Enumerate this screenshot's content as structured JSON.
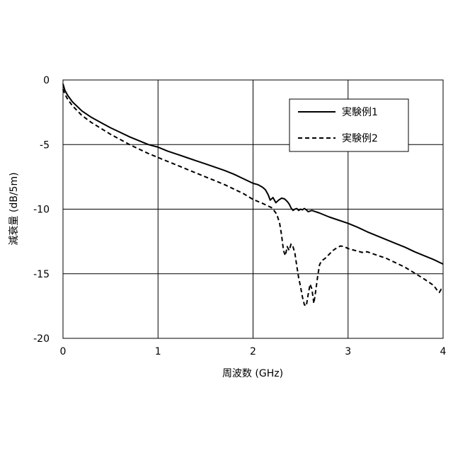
{
  "chart_data": {
    "type": "line",
    "xlabel": "周波数 (GHz)",
    "ylabel": "減衰量 (dB/5m)",
    "xlim": [
      0,
      4
    ],
    "ylim": [
      -20,
      0
    ],
    "x_ticks": [
      0,
      1,
      2,
      3,
      4
    ],
    "y_ticks": [
      0,
      -5,
      -10,
      -15,
      -20
    ],
    "x_tick_labels": [
      "0",
      "1",
      "2",
      "3",
      "4"
    ],
    "y_tick_labels": [
      "0",
      "-5",
      "-10",
      "-15",
      "-20"
    ],
    "grid": true,
    "legend_position": "top-right",
    "series": [
      {
        "name": "実験例1",
        "style": "solid",
        "color": "#000000",
        "points": [
          [
            0.0,
            -0.3
          ],
          [
            0.02,
            -0.8
          ],
          [
            0.05,
            -1.2
          ],
          [
            0.1,
            -1.7
          ],
          [
            0.2,
            -2.4
          ],
          [
            0.3,
            -2.9
          ],
          [
            0.4,
            -3.3
          ],
          [
            0.5,
            -3.7
          ],
          [
            0.6,
            -4.05
          ],
          [
            0.7,
            -4.4
          ],
          [
            0.8,
            -4.7
          ],
          [
            0.9,
            -5.0
          ],
          [
            1.0,
            -5.2
          ],
          [
            1.1,
            -5.5
          ],
          [
            1.2,
            -5.75
          ],
          [
            1.3,
            -6.0
          ],
          [
            1.4,
            -6.25
          ],
          [
            1.5,
            -6.5
          ],
          [
            1.6,
            -6.75
          ],
          [
            1.7,
            -7.0
          ],
          [
            1.8,
            -7.3
          ],
          [
            1.9,
            -7.65
          ],
          [
            2.0,
            -8.0
          ],
          [
            2.05,
            -8.1
          ],
          [
            2.1,
            -8.3
          ],
          [
            2.13,
            -8.5
          ],
          [
            2.16,
            -8.9
          ],
          [
            2.18,
            -9.3
          ],
          [
            2.21,
            -9.1
          ],
          [
            2.24,
            -9.5
          ],
          [
            2.27,
            -9.3
          ],
          [
            2.3,
            -9.15
          ],
          [
            2.33,
            -9.2
          ],
          [
            2.36,
            -9.4
          ],
          [
            2.38,
            -9.6
          ],
          [
            2.4,
            -9.9
          ],
          [
            2.42,
            -10.1
          ],
          [
            2.44,
            -10.0
          ],
          [
            2.46,
            -9.95
          ],
          [
            2.48,
            -10.1
          ],
          [
            2.5,
            -10.0
          ],
          [
            2.52,
            -10.05
          ],
          [
            2.54,
            -9.95
          ],
          [
            2.56,
            -10.05
          ],
          [
            2.58,
            -10.2
          ],
          [
            2.62,
            -10.1
          ],
          [
            2.7,
            -10.3
          ],
          [
            2.8,
            -10.6
          ],
          [
            2.9,
            -10.85
          ],
          [
            3.0,
            -11.1
          ],
          [
            3.1,
            -11.4
          ],
          [
            3.2,
            -11.75
          ],
          [
            3.3,
            -12.05
          ],
          [
            3.4,
            -12.35
          ],
          [
            3.5,
            -12.65
          ],
          [
            3.6,
            -12.95
          ],
          [
            3.7,
            -13.3
          ],
          [
            3.8,
            -13.6
          ],
          [
            3.9,
            -13.9
          ],
          [
            4.0,
            -14.25
          ]
        ]
      },
      {
        "name": "実験例2",
        "style": "dashed",
        "color": "#000000",
        "points": [
          [
            0.0,
            -0.7
          ],
          [
            0.02,
            -1.1
          ],
          [
            0.05,
            -1.5
          ],
          [
            0.1,
            -2.0
          ],
          [
            0.2,
            -2.75
          ],
          [
            0.3,
            -3.3
          ],
          [
            0.4,
            -3.75
          ],
          [
            0.5,
            -4.2
          ],
          [
            0.6,
            -4.6
          ],
          [
            0.7,
            -5.0
          ],
          [
            0.8,
            -5.35
          ],
          [
            0.9,
            -5.7
          ],
          [
            1.0,
            -6.0
          ],
          [
            1.1,
            -6.3
          ],
          [
            1.2,
            -6.6
          ],
          [
            1.3,
            -6.9
          ],
          [
            1.4,
            -7.2
          ],
          [
            1.5,
            -7.5
          ],
          [
            1.6,
            -7.8
          ],
          [
            1.7,
            -8.1
          ],
          [
            1.8,
            -8.45
          ],
          [
            1.9,
            -8.8
          ],
          [
            2.0,
            -9.25
          ],
          [
            2.1,
            -9.55
          ],
          [
            2.2,
            -9.9
          ],
          [
            2.25,
            -10.4
          ],
          [
            2.28,
            -11.1
          ],
          [
            2.3,
            -12.0
          ],
          [
            2.32,
            -13.2
          ],
          [
            2.34,
            -13.6
          ],
          [
            2.36,
            -12.9
          ],
          [
            2.38,
            -13.2
          ],
          [
            2.4,
            -12.7
          ],
          [
            2.42,
            -12.9
          ],
          [
            2.44,
            -13.4
          ],
          [
            2.46,
            -14.4
          ],
          [
            2.48,
            -15.3
          ],
          [
            2.5,
            -16.0
          ],
          [
            2.52,
            -16.8
          ],
          [
            2.54,
            -17.4
          ],
          [
            2.56,
            -17.5
          ],
          [
            2.58,
            -16.6
          ],
          [
            2.6,
            -15.8
          ],
          [
            2.62,
            -16.2
          ],
          [
            2.64,
            -17.3
          ],
          [
            2.66,
            -16.3
          ],
          [
            2.68,
            -15.2
          ],
          [
            2.7,
            -14.3
          ],
          [
            2.72,
            -14.0
          ],
          [
            2.76,
            -13.8
          ],
          [
            2.8,
            -13.5
          ],
          [
            2.84,
            -13.2
          ],
          [
            2.88,
            -13.0
          ],
          [
            2.92,
            -12.85
          ],
          [
            2.96,
            -12.9
          ],
          [
            3.0,
            -13.05
          ],
          [
            3.05,
            -13.15
          ],
          [
            3.1,
            -13.25
          ],
          [
            3.15,
            -13.35
          ],
          [
            3.2,
            -13.3
          ],
          [
            3.3,
            -13.55
          ],
          [
            3.4,
            -13.8
          ],
          [
            3.5,
            -14.15
          ],
          [
            3.6,
            -14.5
          ],
          [
            3.7,
            -14.95
          ],
          [
            3.8,
            -15.4
          ],
          [
            3.9,
            -15.9
          ],
          [
            3.94,
            -16.3
          ],
          [
            3.96,
            -16.45
          ],
          [
            3.98,
            -16.2
          ],
          [
            4.0,
            -16.25
          ]
        ]
      }
    ]
  }
}
